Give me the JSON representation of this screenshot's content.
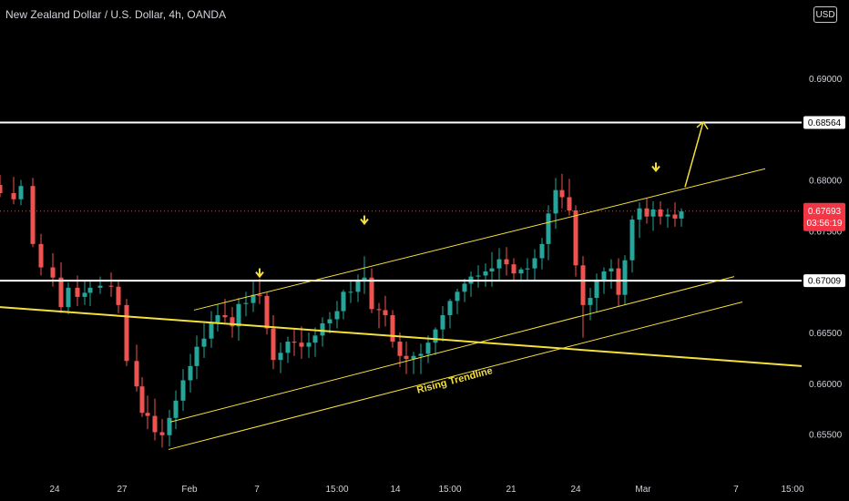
{
  "header": {
    "title": "New Zealand Dollar / U.S. Dollar, 4h, OANDA",
    "currency_label": "USD"
  },
  "colors": {
    "background": "#000000",
    "up_candle": "#26a69a",
    "down_candle": "#ef5350",
    "level_line": "#ffffff",
    "trend_line": "#f5e03a",
    "annotation": "#f5e03a",
    "last_price_label": "#f23645"
  },
  "chart_data": {
    "type": "candlestick",
    "symbol": "New Zealand Dollar / U.S. Dollar",
    "timeframe": "4h",
    "source": "OANDA",
    "price_ticks": [
      "0.69000",
      "0.68000",
      "0.67500",
      "0.66500",
      "0.66000",
      "0.65500"
    ],
    "price_tick_values": [
      0.69,
      0.68,
      0.675,
      0.665,
      0.66,
      0.655
    ],
    "time_ticks": [
      "24",
      "27",
      "Feb",
      "7",
      "15:00",
      "14",
      "15:00",
      "21",
      "24",
      "Mar",
      "7",
      "15:00"
    ],
    "ylim": [
      0.6513,
      0.695
    ],
    "horizontal_levels": [
      {
        "price": 0.68564,
        "label": "0.68564"
      },
      {
        "price": 0.67009,
        "label": "0.67009"
      }
    ],
    "last_price": {
      "price": 0.67693,
      "label": "0.67693",
      "countdown": "03:56:19"
    },
    "trendlines": [
      {
        "name": "descending-trendline",
        "from": {
          "x": 0,
          "price": 0.6675
        },
        "to": {
          "x": 880,
          "price": 0.6617
        },
        "width": 2
      },
      {
        "name": "channel-upper",
        "from": {
          "x": 213,
          "price": 0.6672
        },
        "to": {
          "x": 840,
          "price": 0.6811
        },
        "width": 1
      },
      {
        "name": "channel-middle",
        "from": {
          "x": 187,
          "price": 0.6562
        },
        "to": {
          "x": 806,
          "price": 0.6705
        },
        "width": 1
      },
      {
        "name": "channel-lower",
        "from": {
          "x": 185,
          "price": 0.6535
        },
        "to": {
          "x": 815,
          "price": 0.668
        },
        "width": 1
      }
    ],
    "markers": [
      {
        "x": 285,
        "price": 0.6705
      },
      {
        "x": 400,
        "price": 0.6757
      },
      {
        "x": 720,
        "price": 0.6809
      }
    ],
    "projection": {
      "from": {
        "x": 752,
        "price": 0.6793
      },
      "to": {
        "x": 772,
        "price": 0.6857
      }
    },
    "annotations": [
      {
        "text": "Rising Trendline",
        "x": 500,
        "price": 0.66,
        "angle": -15
      }
    ],
    "series": {
      "x": [
        0,
        15,
        23,
        36,
        45,
        58,
        67,
        75,
        85,
        93,
        99,
        110,
        122,
        130,
        139,
        150,
        156,
        162,
        170,
        178,
        186,
        193,
        201,
        209,
        216,
        224,
        232,
        239,
        247,
        255,
        262,
        270,
        278,
        285,
        293,
        300,
        308,
        316,
        323,
        331,
        339,
        346,
        354,
        362,
        370,
        377,
        385,
        393,
        400,
        408,
        416,
        423,
        431,
        439,
        446,
        454,
        462,
        470,
        478,
        486,
        494,
        502,
        510,
        517,
        525,
        533,
        540,
        548,
        556,
        564,
        572,
        579,
        587,
        595,
        602,
        610,
        617,
        625,
        632,
        640,
        648,
        655,
        663,
        671,
        679,
        686,
        694,
        702,
        710,
        717,
        725,
        733,
        741,
        748
      ],
      "open": [
        0.6795,
        0.6787,
        0.6781,
        0.6794,
        0.6737,
        0.6714,
        0.6704,
        0.6675,
        0.6694,
        0.6685,
        0.6689,
        0.6694,
        0.6696,
        0.6695,
        0.6677,
        0.6622,
        0.6597,
        0.6571,
        0.6568,
        0.6552,
        0.6549,
        0.6566,
        0.6583,
        0.6603,
        0.6617,
        0.6636,
        0.6644,
        0.666,
        0.6667,
        0.6665,
        0.6656,
        0.6678,
        0.6679,
        0.6687,
        0.6686,
        0.6654,
        0.6623,
        0.663,
        0.6641,
        0.664,
        0.6636,
        0.664,
        0.6647,
        0.6659,
        0.6663,
        0.6671,
        0.669,
        0.669,
        0.6702,
        0.6704,
        0.6673,
        0.6672,
        0.6667,
        0.6641,
        0.6627,
        0.6624,
        0.6627,
        0.6629,
        0.664,
        0.6653,
        0.6667,
        0.6681,
        0.669,
        0.6698,
        0.6705,
        0.6706,
        0.671,
        0.6713,
        0.6722,
        0.6717,
        0.6708,
        0.6712,
        0.6713,
        0.6723,
        0.6737,
        0.6767,
        0.679,
        0.6783,
        0.677,
        0.6716,
        0.6677,
        0.6684,
        0.6702,
        0.671,
        0.6713,
        0.6687,
        0.6721,
        0.6761,
        0.6772,
        0.6764,
        0.6771,
        0.6764,
        0.6766,
        0.6762
      ],
      "high": [
        0.6805,
        0.6803,
        0.68,
        0.6802,
        0.6747,
        0.6728,
        0.6719,
        0.6699,
        0.6706,
        0.6701,
        0.6702,
        0.6705,
        0.6709,
        0.6701,
        0.6683,
        0.6638,
        0.6606,
        0.6588,
        0.6585,
        0.6565,
        0.6574,
        0.6593,
        0.6614,
        0.6629,
        0.6647,
        0.6659,
        0.6671,
        0.6678,
        0.6683,
        0.6675,
        0.6684,
        0.669,
        0.67,
        0.6703,
        0.6689,
        0.6667,
        0.664,
        0.6646,
        0.6653,
        0.6656,
        0.665,
        0.6655,
        0.6665,
        0.667,
        0.6681,
        0.6692,
        0.67,
        0.6707,
        0.6725,
        0.6713,
        0.6679,
        0.6686,
        0.6672,
        0.665,
        0.6641,
        0.6631,
        0.6639,
        0.6647,
        0.6655,
        0.6676,
        0.6683,
        0.6693,
        0.6703,
        0.671,
        0.6716,
        0.6718,
        0.6729,
        0.6733,
        0.6734,
        0.6723,
        0.6714,
        0.6723,
        0.6732,
        0.6743,
        0.6775,
        0.6802,
        0.6806,
        0.6801,
        0.6775,
        0.6725,
        0.6694,
        0.6708,
        0.6714,
        0.6722,
        0.6723,
        0.6726,
        0.6765,
        0.6778,
        0.6782,
        0.6779,
        0.6779,
        0.6772,
        0.6778,
        0.6772
      ],
      "low": [
        0.6783,
        0.6776,
        0.6775,
        0.6734,
        0.6706,
        0.6695,
        0.6669,
        0.6668,
        0.6676,
        0.6677,
        0.6676,
        0.6688,
        0.6685,
        0.6669,
        0.6617,
        0.6592,
        0.6567,
        0.6555,
        0.6544,
        0.6537,
        0.6538,
        0.6555,
        0.6573,
        0.6591,
        0.6604,
        0.6625,
        0.6635,
        0.6651,
        0.666,
        0.6645,
        0.6642,
        0.6666,
        0.667,
        0.6678,
        0.6648,
        0.6614,
        0.661,
        0.662,
        0.6627,
        0.6624,
        0.6625,
        0.6626,
        0.6636,
        0.6649,
        0.6654,
        0.6663,
        0.6679,
        0.668,
        0.6688,
        0.6669,
        0.6654,
        0.6656,
        0.6635,
        0.6616,
        0.6609,
        0.6609,
        0.6609,
        0.662,
        0.6628,
        0.6641,
        0.6654,
        0.6668,
        0.668,
        0.6685,
        0.6694,
        0.6695,
        0.6695,
        0.6701,
        0.6706,
        0.67,
        0.67,
        0.67,
        0.67,
        0.6712,
        0.6721,
        0.6752,
        0.6772,
        0.6765,
        0.6705,
        0.6645,
        0.6662,
        0.667,
        0.6688,
        0.6693,
        0.6676,
        0.6677,
        0.6709,
        0.6743,
        0.6757,
        0.675,
        0.6756,
        0.6753,
        0.6754,
        0.6754
      ],
      "close": [
        0.6787,
        0.6781,
        0.6794,
        0.6737,
        0.6714,
        0.6704,
        0.6675,
        0.6694,
        0.6685,
        0.6689,
        0.6694,
        0.6696,
        0.6695,
        0.6677,
        0.6622,
        0.6597,
        0.6571,
        0.6568,
        0.6552,
        0.6549,
        0.6566,
        0.6583,
        0.6603,
        0.6617,
        0.6636,
        0.6644,
        0.666,
        0.6667,
        0.6665,
        0.6656,
        0.6678,
        0.6679,
        0.6687,
        0.6686,
        0.6654,
        0.6623,
        0.663,
        0.6641,
        0.664,
        0.6636,
        0.664,
        0.6647,
        0.6659,
        0.6663,
        0.6671,
        0.669,
        0.669,
        0.6702,
        0.6704,
        0.6673,
        0.6672,
        0.6667,
        0.6641,
        0.6627,
        0.6624,
        0.6627,
        0.6629,
        0.664,
        0.6653,
        0.6667,
        0.6681,
        0.669,
        0.6698,
        0.6705,
        0.6706,
        0.671,
        0.6713,
        0.6722,
        0.6717,
        0.6708,
        0.6712,
        0.6713,
        0.6723,
        0.6737,
        0.6767,
        0.679,
        0.6783,
        0.677,
        0.6716,
        0.6677,
        0.6684,
        0.6702,
        0.671,
        0.6713,
        0.6687,
        0.6721,
        0.6761,
        0.6772,
        0.6764,
        0.6771,
        0.6764,
        0.6766,
        0.6762,
        0.6769
      ]
    }
  }
}
